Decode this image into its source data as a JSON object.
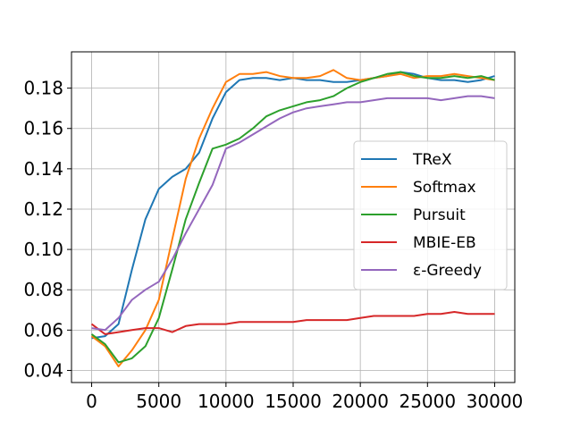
{
  "chart_data": {
    "type": "line",
    "title": "",
    "xlabel": "",
    "ylabel": "",
    "xlim": [
      -1500,
      31500
    ],
    "ylim": [
      0.034,
      0.198
    ],
    "grid": true,
    "legend_position": "center-right",
    "x_ticks": [
      0,
      5000,
      10000,
      15000,
      20000,
      25000,
      30000
    ],
    "x_tick_labels": [
      "0",
      "5000",
      "10000",
      "15000",
      "20000",
      "25000",
      "30000"
    ],
    "y_ticks": [
      0.04,
      0.06,
      0.08,
      0.1,
      0.12,
      0.14,
      0.16,
      0.18
    ],
    "y_tick_labels": [
      "0.04",
      "0.06",
      "0.08",
      "0.10",
      "0.12",
      "0.14",
      "0.16",
      "0.18"
    ],
    "x": [
      0,
      1000,
      2000,
      3000,
      4000,
      5000,
      6000,
      7000,
      8000,
      9000,
      10000,
      11000,
      12000,
      13000,
      14000,
      15000,
      16000,
      17000,
      18000,
      19000,
      20000,
      21000,
      22000,
      23000,
      24000,
      25000,
      26000,
      27000,
      28000,
      29000,
      30000
    ],
    "series": [
      {
        "name": "TReX",
        "color": "#1f77b4",
        "values": [
          0.056,
          0.057,
          0.063,
          0.09,
          0.115,
          0.13,
          0.136,
          0.14,
          0.148,
          0.165,
          0.178,
          0.184,
          0.185,
          0.185,
          0.184,
          0.185,
          0.184,
          0.184,
          0.183,
          0.183,
          0.184,
          0.185,
          0.186,
          0.188,
          0.187,
          0.185,
          0.184,
          0.184,
          0.183,
          0.184,
          0.186
        ]
      },
      {
        "name": "Softmax",
        "color": "#ff7f0e",
        "values": [
          0.057,
          0.052,
          0.042,
          0.05,
          0.06,
          0.075,
          0.105,
          0.135,
          0.155,
          0.17,
          0.183,
          0.187,
          0.187,
          0.188,
          0.186,
          0.185,
          0.185,
          0.186,
          0.189,
          0.185,
          0.184,
          0.185,
          0.186,
          0.187,
          0.185,
          0.186,
          0.186,
          0.187,
          0.186,
          0.185,
          0.184
        ]
      },
      {
        "name": "Pursuit",
        "color": "#2ca02c",
        "values": [
          0.058,
          0.053,
          0.044,
          0.046,
          0.052,
          0.066,
          0.09,
          0.115,
          0.133,
          0.15,
          0.152,
          0.155,
          0.16,
          0.166,
          0.169,
          0.171,
          0.173,
          0.174,
          0.176,
          0.18,
          0.183,
          0.185,
          0.187,
          0.188,
          0.186,
          0.185,
          0.185,
          0.186,
          0.185,
          0.186,
          0.184
        ]
      },
      {
        "name": "MBIE-EB",
        "color": "#d62728",
        "values": [
          0.063,
          0.058,
          0.059,
          0.06,
          0.061,
          0.061,
          0.059,
          0.062,
          0.063,
          0.063,
          0.063,
          0.064,
          0.064,
          0.064,
          0.064,
          0.064,
          0.065,
          0.065,
          0.065,
          0.065,
          0.066,
          0.067,
          0.067,
          0.067,
          0.067,
          0.068,
          0.068,
          0.069,
          0.068,
          0.068,
          0.068
        ]
      },
      {
        "name": "ε-Greedy",
        "color": "#9467bd",
        "values": [
          0.061,
          0.06,
          0.066,
          0.075,
          0.08,
          0.084,
          0.095,
          0.108,
          0.12,
          0.132,
          0.15,
          0.153,
          0.157,
          0.161,
          0.165,
          0.168,
          0.17,
          0.171,
          0.172,
          0.173,
          0.173,
          0.174,
          0.175,
          0.175,
          0.175,
          0.175,
          0.174,
          0.175,
          0.176,
          0.176,
          0.175
        ]
      }
    ]
  }
}
